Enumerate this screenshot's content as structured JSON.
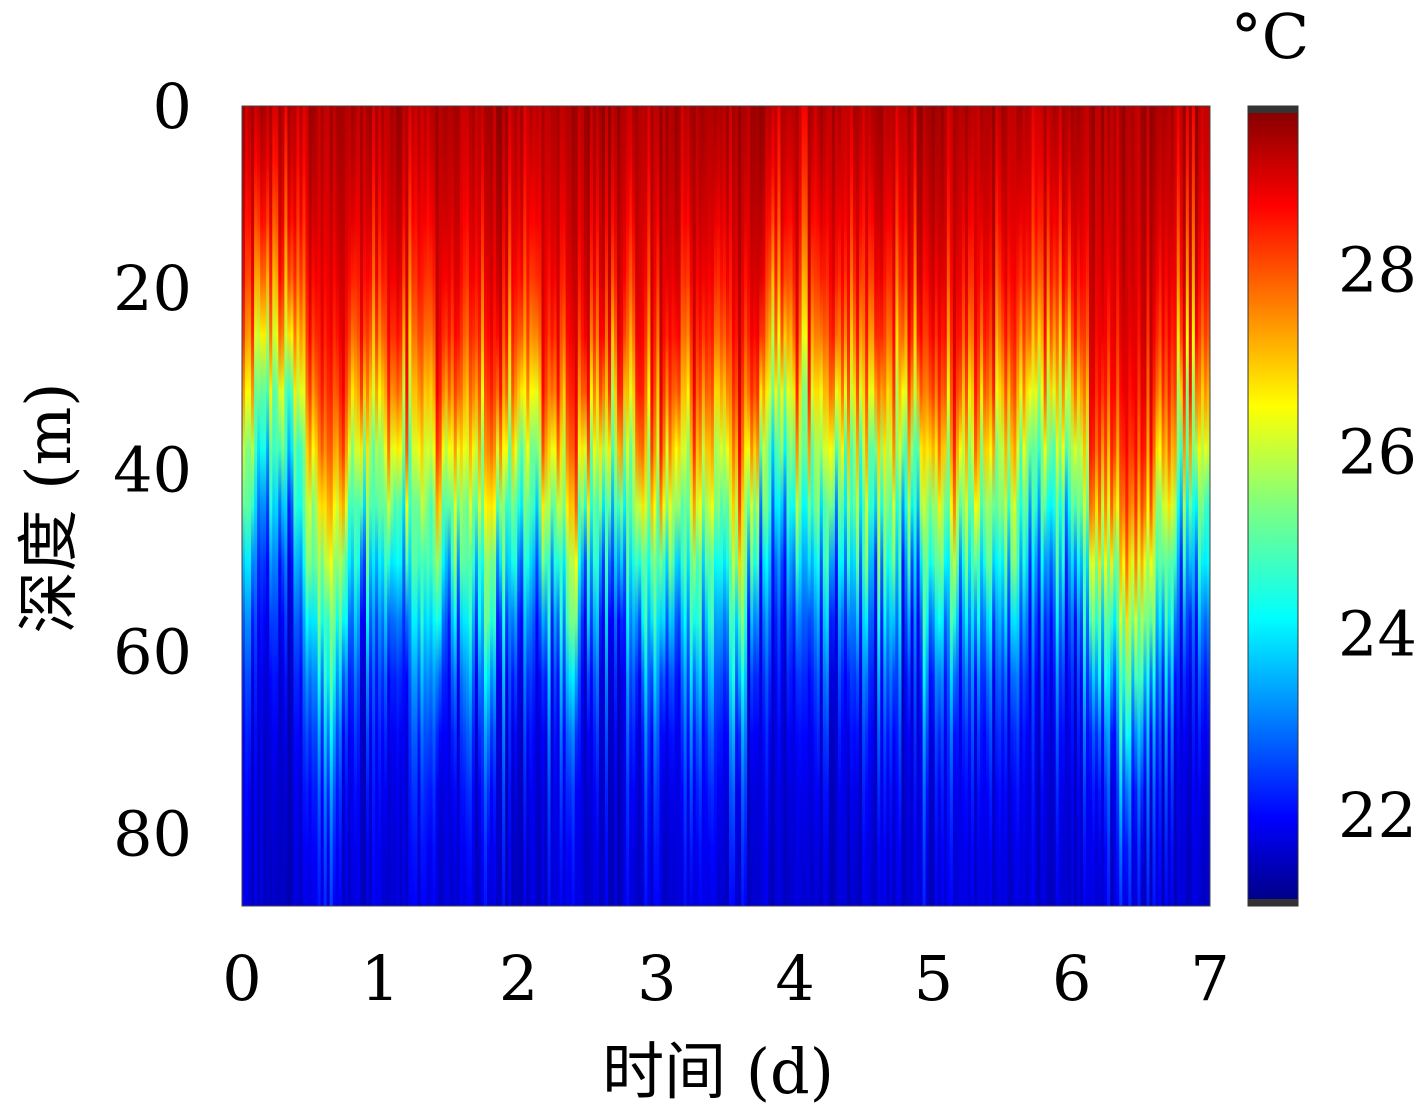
{
  "chart_data": {
    "type": "heatmap",
    "title": "",
    "xlabel": "时间 (d)",
    "ylabel": "深度 (m)",
    "xlim": [
      0,
      7
    ],
    "ylim": [
      0,
      88
    ],
    "y_inverted": true,
    "x_ticks": [
      0,
      1,
      2,
      3,
      4,
      5,
      6,
      7
    ],
    "x_tick_labels": [
      "0",
      "1",
      "2",
      "3",
      "4",
      "5",
      "6",
      "7"
    ],
    "y_ticks": [
      0,
      20,
      40,
      60,
      80
    ],
    "y_tick_labels": [
      "0",
      "20",
      "40",
      "60",
      "80"
    ],
    "colorbar": {
      "unit": "°C",
      "range": [
        21,
        29.8
      ],
      "ticks": [
        22,
        24,
        26,
        28
      ],
      "tick_labels": [
        "22",
        "24",
        "26",
        "28"
      ],
      "colormap": "jet"
    },
    "mixed_layer_depth_m": {
      "t_days": [
        0,
        0.2,
        0.4,
        0.6,
        0.8,
        1.0,
        1.2,
        1.4,
        1.6,
        1.8,
        2.0,
        2.2,
        2.4,
        2.6,
        2.8,
        3.0,
        3.2,
        3.4,
        3.6,
        3.8,
        4.0,
        4.2,
        4.4,
        4.6,
        4.8,
        5.0,
        5.2,
        5.4,
        5.6,
        5.8,
        6.0,
        6.2,
        6.4,
        6.6,
        6.8,
        7.0
      ],
      "thermocline_depth": [
        40,
        33,
        36,
        60,
        45,
        45,
        42,
        50,
        44,
        48,
        44,
        44,
        50,
        40,
        46,
        48,
        46,
        46,
        52,
        36,
        42,
        44,
        42,
        44,
        44,
        46,
        48,
        46,
        44,
        40,
        40,
        52,
        62,
        52,
        42,
        46
      ]
    }
  }
}
